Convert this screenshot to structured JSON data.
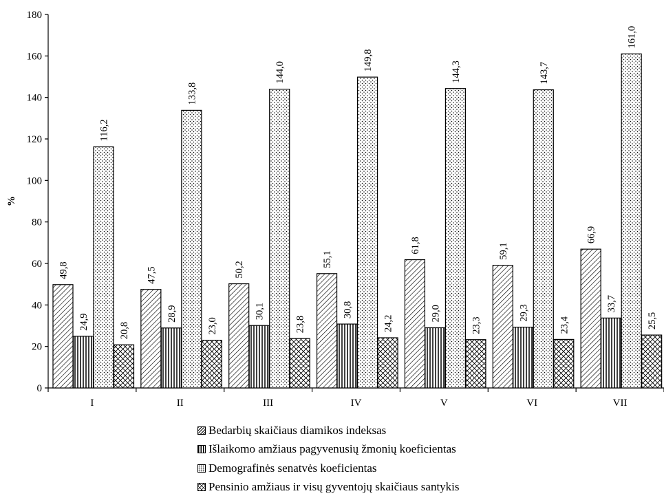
{
  "chart_data": {
    "type": "bar",
    "title": "",
    "xlabel": "",
    "ylabel": "%",
    "ylim": [
      0,
      180
    ],
    "yticks": [
      "0",
      "20",
      "40",
      "60",
      "80",
      "100",
      "120",
      "140",
      "160",
      "180"
    ],
    "categories": [
      "I",
      "II",
      "III",
      "IV",
      "V",
      "VI",
      "VII"
    ],
    "series": [
      {
        "name": "Bedarbių skaičiaus diamikos indeksas",
        "values": [
          49.8,
          47.5,
          50.2,
          55.1,
          61.8,
          59.1,
          66.9
        ],
        "labels": [
          "49,8",
          "47,5",
          "50,2",
          "55,1",
          "61,8",
          "59,1",
          "66,9"
        ],
        "pattern": "diagonal-hatch"
      },
      {
        "name": "Išlaikomo amžiaus pagyvenusių žmonių koeficientas",
        "values": [
          24.9,
          28.9,
          30.1,
          30.8,
          29.0,
          29.3,
          33.7
        ],
        "labels": [
          "24,9",
          "28,9",
          "30,1",
          "30,8",
          "29,0",
          "29,3",
          "33,7"
        ],
        "pattern": "vertical-lines"
      },
      {
        "name": "Demografinės senatvės koeficientas",
        "values": [
          116.2,
          133.8,
          144.0,
          149.8,
          144.3,
          143.7,
          161.0
        ],
        "labels": [
          "116,2",
          "133,8",
          "144,0",
          "149,8",
          "144,3",
          "143,7",
          "161,0"
        ],
        "pattern": "dotted"
      },
      {
        "name": "Pensinio amžiaus ir visų gyventojų skaičiaus santykis",
        "values": [
          20.8,
          23.0,
          23.8,
          24.2,
          23.3,
          23.4,
          25.5
        ],
        "labels": [
          "20,8",
          "23,0",
          "23,8",
          "24,2",
          "23,3",
          "23,4",
          "25,5"
        ],
        "pattern": "crosshatch"
      }
    ],
    "grid": false,
    "legend_position": "bottom"
  }
}
